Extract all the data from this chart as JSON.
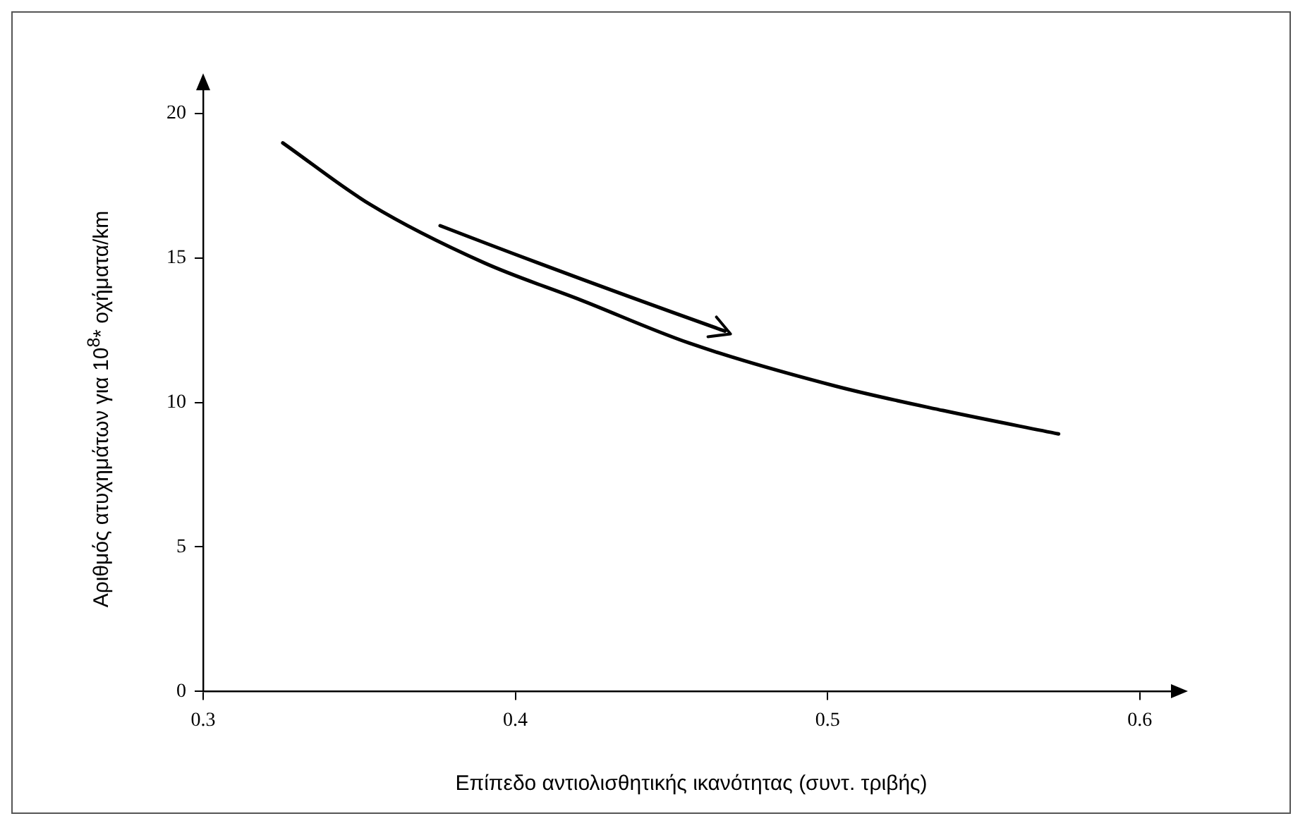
{
  "chart_data": {
    "type": "line",
    "xlabel": "Επίπεδο αντιολισθητικής ικανότητας (συντ. τριβής)",
    "ylabel": "Αριθμός ατυχημάτων για 10$^{8}$* οχήματα/km",
    "x": [
      0.3255,
      0.3535,
      0.39,
      0.4208,
      0.4555,
      0.5024,
      0.537,
      0.574
    ],
    "series": [
      {
        "color": "#000000",
        "values": [
          18.98,
          16.85,
          14.83,
          13.55,
          12.06,
          10.57,
          9.72,
          8.91
        ]
      }
    ],
    "xlim": [
      0.3,
      0.61
    ],
    "ylim": [
      0,
      20.8
    ],
    "xticks": [
      0.3,
      0.4,
      0.5,
      0.6
    ],
    "yticks": [
      0,
      5,
      10,
      15,
      20
    ],
    "grid": false,
    "legend": false,
    "marker": "none",
    "line_style": "solid"
  }
}
